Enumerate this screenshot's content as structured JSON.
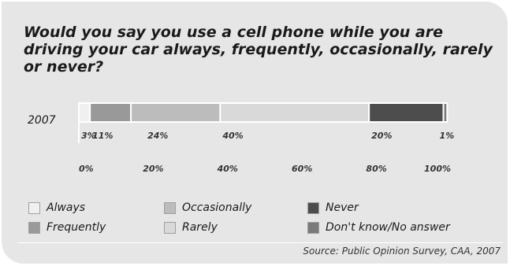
{
  "title": "Would you say you use a cell phone while you are driving your car always, frequently, occasionally, rarely or never?",
  "source": "Source: Public Opinion Survey, CAA, 2007",
  "chart_data": {
    "type": "bar",
    "orientation": "horizontal",
    "stacked": true,
    "categories": [
      "2007"
    ],
    "series": [
      {
        "name": "Always",
        "values": [
          3
        ],
        "label": "3%",
        "color": "#f0f0f0"
      },
      {
        "name": "Frequently",
        "values": [
          11
        ],
        "label": "11%",
        "color": "#999999"
      },
      {
        "name": "Occasionally",
        "values": [
          24
        ],
        "label": "24%",
        "color": "#bcbcbc"
      },
      {
        "name": "Rarely",
        "values": [
          40
        ],
        "label": "40%",
        "color": "#d9d9d9"
      },
      {
        "name": "Never",
        "values": [
          20
        ],
        "label": "20%",
        "color": "#4d4d4d"
      },
      {
        "name": "Don't know/No answer",
        "values": [
          1
        ],
        "label": "1%",
        "color": "#7a7a7a"
      }
    ],
    "xlim": [
      0,
      100
    ],
    "x_ticks": [
      "0%",
      "20%",
      "40%",
      "60%",
      "80%",
      "100%"
    ],
    "legend_position": "bottom",
    "legend_layout": [
      [
        "Always",
        "Occasionally",
        "Never"
      ],
      [
        "Frequently",
        "Rarely",
        "Don't know/No answer"
      ]
    ]
  }
}
